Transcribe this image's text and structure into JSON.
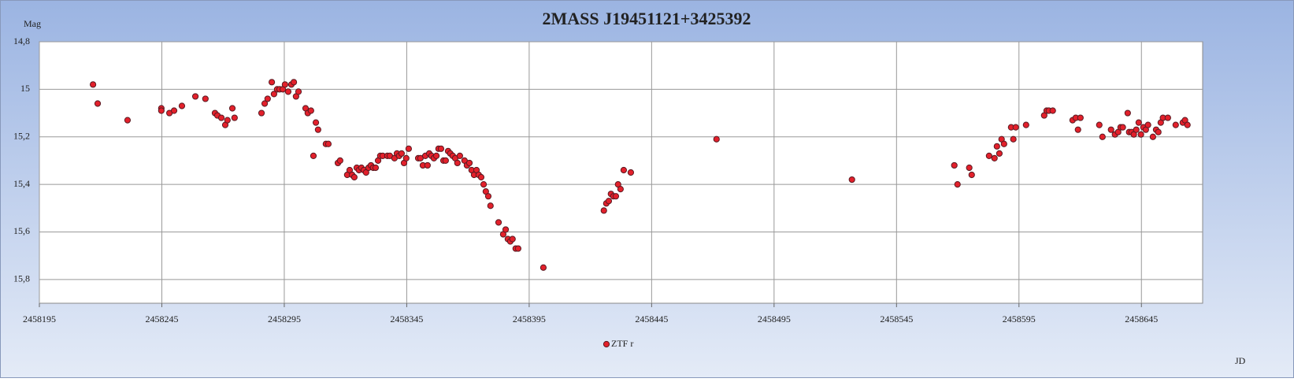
{
  "chart_data": {
    "type": "scatter",
    "title": "2MASS J19451121+3425392",
    "y_label": "Mag",
    "x_label": "JD",
    "xlim": [
      2458195,
      2458670
    ],
    "ylim": [
      14.8,
      15.9
    ],
    "y_inverted": true,
    "grid": true,
    "legend": "bottom",
    "xticks": [
      2458195,
      2458245,
      2458295,
      2458345,
      2458395,
      2458445,
      2458495,
      2458545,
      2458595,
      2458645
    ],
    "yticks": [
      {
        "value": 14.8,
        "label": "14,8"
      },
      15,
      {
        "value": 15.2,
        "label": "15,2"
      },
      {
        "value": 15.4,
        "label": "15,4"
      },
      {
        "value": 15.6,
        "label": "15,6"
      },
      {
        "value": 15.8,
        "label": "15,8"
      }
    ],
    "series": [
      {
        "name": "ZTF r",
        "color": "#e3202b",
        "x": [
          2458216.9,
          2458218.8,
          2458231.0,
          2458244.8,
          2458244.8,
          2458248.1,
          2458250.0,
          2458253.2,
          2458258.7,
          2458262.8,
          2458266.7,
          2458267.7,
          2458269.3,
          2458270.9,
          2458271.8,
          2458273.8,
          2458274.7,
          2458285.7,
          2458287.0,
          2458288.2,
          2458289.9,
          2458290.8,
          2458292.1,
          2458293.1,
          2458294.4,
          2458295.3,
          2458296.6,
          2458297.9,
          2458298.9,
          2458299.8,
          2458300.8,
          2458303.7,
          2458304.6,
          2458305.9,
          2458306.9,
          2458307.9,
          2458308.8,
          2458312.0,
          2458313.0,
          2458316.9,
          2458317.8,
          2458320.7,
          2458321.7,
          2458322.7,
          2458323.6,
          2458324.6,
          2458325.5,
          2458326.5,
          2458327.5,
          2458328.4,
          2458329.4,
          2458330.4,
          2458331.3,
          2458332.3,
          2458333.3,
          2458334.2,
          2458335.2,
          2458337.1,
          2458338.1,
          2458340.0,
          2458341.0,
          2458341.9,
          2458342.9,
          2458343.9,
          2458344.8,
          2458345.8,
          2458349.7,
          2458350.6,
          2458351.6,
          2458352.6,
          2458353.5,
          2458354.2,
          2458355.1,
          2458356.1,
          2458357.1,
          2458358.0,
          2458359.0,
          2458360.0,
          2458360.9,
          2458361.9,
          2458362.8,
          2458363.8,
          2458364.8,
          2458365.7,
          2458366.7,
          2458368.6,
          2458369.6,
          2458370.6,
          2458371.5,
          2458372.5,
          2458373.5,
          2458374.4,
          2458375.4,
          2458376.4,
          2458377.3,
          2458378.3,
          2458379.2,
          2458382.5,
          2458384.4,
          2458385.4,
          2458386.3,
          2458387.3,
          2458388.2,
          2458389.5,
          2458390.5,
          2458400.8,
          2458425.5,
          2458426.5,
          2458427.5,
          2458428.4,
          2458429.4,
          2458430.4,
          2458431.3,
          2458432.3,
          2458433.6,
          2458436.5,
          2458471.5,
          2458526.8,
          2458568.6,
          2458569.9,
          2458574.7,
          2458575.7,
          2458582.8,
          2458585.0,
          2458586.0,
          2458587.0,
          2458587.9,
          2458588.9,
          2458591.8,
          2458592.7,
          2458593.7,
          2458597.9,
          2458605.3,
          2458606.3,
          2458607.2,
          2458608.8,
          2458616.9,
          2458618.2,
          2458619.1,
          2458620.1,
          2458627.8,
          2458629.1,
          2458632.6,
          2458634.2,
          2458635.5,
          2458636.5,
          2458637.4,
          2458639.4,
          2458640.0,
          2458641.0,
          2458641.9,
          2458642.9,
          2458643.9,
          2458644.8,
          2458645.8,
          2458646.8,
          2458647.7,
          2458649.7,
          2458651.0,
          2458651.9,
          2458652.9,
          2458653.8,
          2458655.8,
          2458659.0,
          2458661.9,
          2458662.8,
          2458663.8
        ],
        "values": [
          14.98,
          15.06,
          15.13,
          15.08,
          15.09,
          15.1,
          15.09,
          15.07,
          15.03,
          15.04,
          15.1,
          15.11,
          15.12,
          15.15,
          15.13,
          15.08,
          15.12,
          15.1,
          15.06,
          15.04,
          14.97,
          15.02,
          15.0,
          15.0,
          15.0,
          14.98,
          15.01,
          14.98,
          14.97,
          15.03,
          15.01,
          15.08,
          15.1,
          15.09,
          15.28,
          15.14,
          15.17,
          15.23,
          15.23,
          15.31,
          15.3,
          15.36,
          15.34,
          15.36,
          15.37,
          15.33,
          15.34,
          15.33,
          15.34,
          15.35,
          15.33,
          15.32,
          15.33,
          15.33,
          15.3,
          15.28,
          15.28,
          15.28,
          15.28,
          15.29,
          15.27,
          15.28,
          15.27,
          15.31,
          15.29,
          15.25,
          15.29,
          15.29,
          15.32,
          15.28,
          15.32,
          15.27,
          15.28,
          15.29,
          15.28,
          15.25,
          15.25,
          15.3,
          15.3,
          15.26,
          15.27,
          15.28,
          15.29,
          15.31,
          15.28,
          15.3,
          15.32,
          15.31,
          15.34,
          15.36,
          15.34,
          15.36,
          15.37,
          15.4,
          15.43,
          15.45,
          15.49,
          15.56,
          15.61,
          15.59,
          15.63,
          15.64,
          15.63,
          15.67,
          15.67,
          15.75,
          15.51,
          15.48,
          15.47,
          15.44,
          15.45,
          15.45,
          15.4,
          15.42,
          15.34,
          15.35,
          15.21,
          15.38,
          15.32,
          15.4,
          15.33,
          15.36,
          15.28,
          15.29,
          15.24,
          15.27,
          15.21,
          15.23,
          15.16,
          15.21,
          15.16,
          15.15,
          15.11,
          15.09,
          15.09,
          15.09,
          15.13,
          15.12,
          15.17,
          15.12,
          15.15,
          15.2,
          15.17,
          15.19,
          15.18,
          15.16,
          15.16,
          15.1,
          15.18,
          15.18,
          15.19,
          15.17,
          15.14,
          15.19,
          15.16,
          15.17,
          15.15,
          15.2,
          15.17,
          15.18,
          15.14,
          15.12,
          15.12,
          15.15,
          15.14,
          15.13,
          15.15
        ]
      }
    ]
  }
}
